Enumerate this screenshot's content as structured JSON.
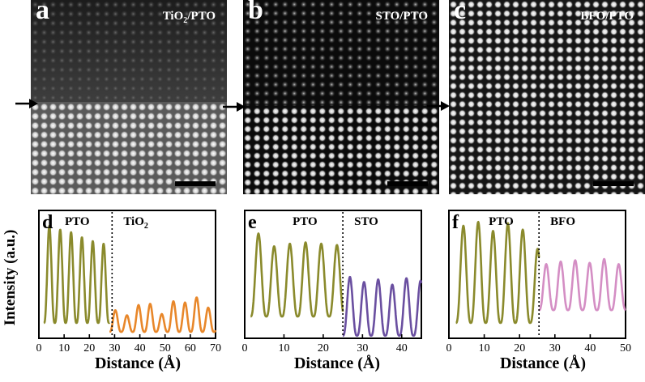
{
  "panels": {
    "a": {
      "letter": "a",
      "title_main": "TiO",
      "title_sub": "2",
      "title_rest": "/PTO"
    },
    "b": {
      "letter": "b",
      "title": "STO/PTO"
    },
    "c": {
      "letter": "c",
      "title": "BFO/PTO"
    }
  },
  "ylabel": "Intensity (a.u.)",
  "xlabel": "Distance (Å)",
  "colors": {
    "pto": "#8a8a2c",
    "tio2": "#e8872a",
    "sto": "#6a4fa0",
    "bfo": "#d48ec4"
  },
  "chart_data": [
    {
      "type": "line",
      "panel": "d",
      "letter": "d",
      "xlim": [
        0,
        70
      ],
      "xticks": [
        0,
        10,
        20,
        30,
        40,
        50,
        60,
        70
      ],
      "interface_x": 29,
      "region_labels": {
        "left": "PTO",
        "right_main": "TiO",
        "right_sub": "2"
      },
      "series": [
        {
          "name": "PTO",
          "period": 4.3,
          "start": 2,
          "end": 28,
          "peak_levels": [
            0.88,
            0.85,
            0.83,
            0.79,
            0.76,
            0.74,
            0.55
          ],
          "base": 0.12
        },
        {
          "name": "TiO2",
          "period": 4.6,
          "start": 28,
          "end": 70,
          "peak_levels": [
            0.22,
            0.18,
            0.26,
            0.27,
            0.19,
            0.29,
            0.28,
            0.32,
            0.24
          ],
          "base": 0.05
        }
      ]
    },
    {
      "type": "line",
      "panel": "e",
      "letter": "e",
      "xlim": [
        0,
        45
      ],
      "xticks": [
        0,
        10,
        20,
        30,
        40
      ],
      "interface_x": 25,
      "region_labels": {
        "left": "PTO",
        "right": "STO"
      },
      "series": [
        {
          "name": "PTO",
          "period": 4.0,
          "start": 1.5,
          "end": 25,
          "peak_levels": [
            0.82,
            0.72,
            0.74,
            0.75,
            0.74,
            0.73,
            0.62
          ],
          "base": 0.17
        },
        {
          "name": "STO",
          "period": 3.6,
          "start": 25,
          "end": 45,
          "peak_levels": [
            0.48,
            0.44,
            0.46,
            0.42,
            0.47,
            0.45
          ],
          "base": 0.02
        }
      ]
    },
    {
      "type": "line",
      "panel": "f",
      "letter": "f",
      "xlim": [
        0,
        50
      ],
      "xticks": [
        0,
        10,
        20,
        30,
        40,
        50
      ],
      "interface_x": 25.5,
      "region_labels": {
        "left": "PTO",
        "right": "BFO"
      },
      "series": [
        {
          "name": "PTO",
          "period": 4.2,
          "start": 2,
          "end": 25.5,
          "peak_levels": [
            0.88,
            0.91,
            0.84,
            0.9,
            0.85,
            0.7
          ],
          "base": 0.12
        },
        {
          "name": "BFO",
          "period": 4.1,
          "start": 25.5,
          "end": 50,
          "peak_levels": [
            0.58,
            0.6,
            0.61,
            0.59,
            0.62,
            0.58
          ],
          "base": 0.22
        }
      ]
    }
  ]
}
